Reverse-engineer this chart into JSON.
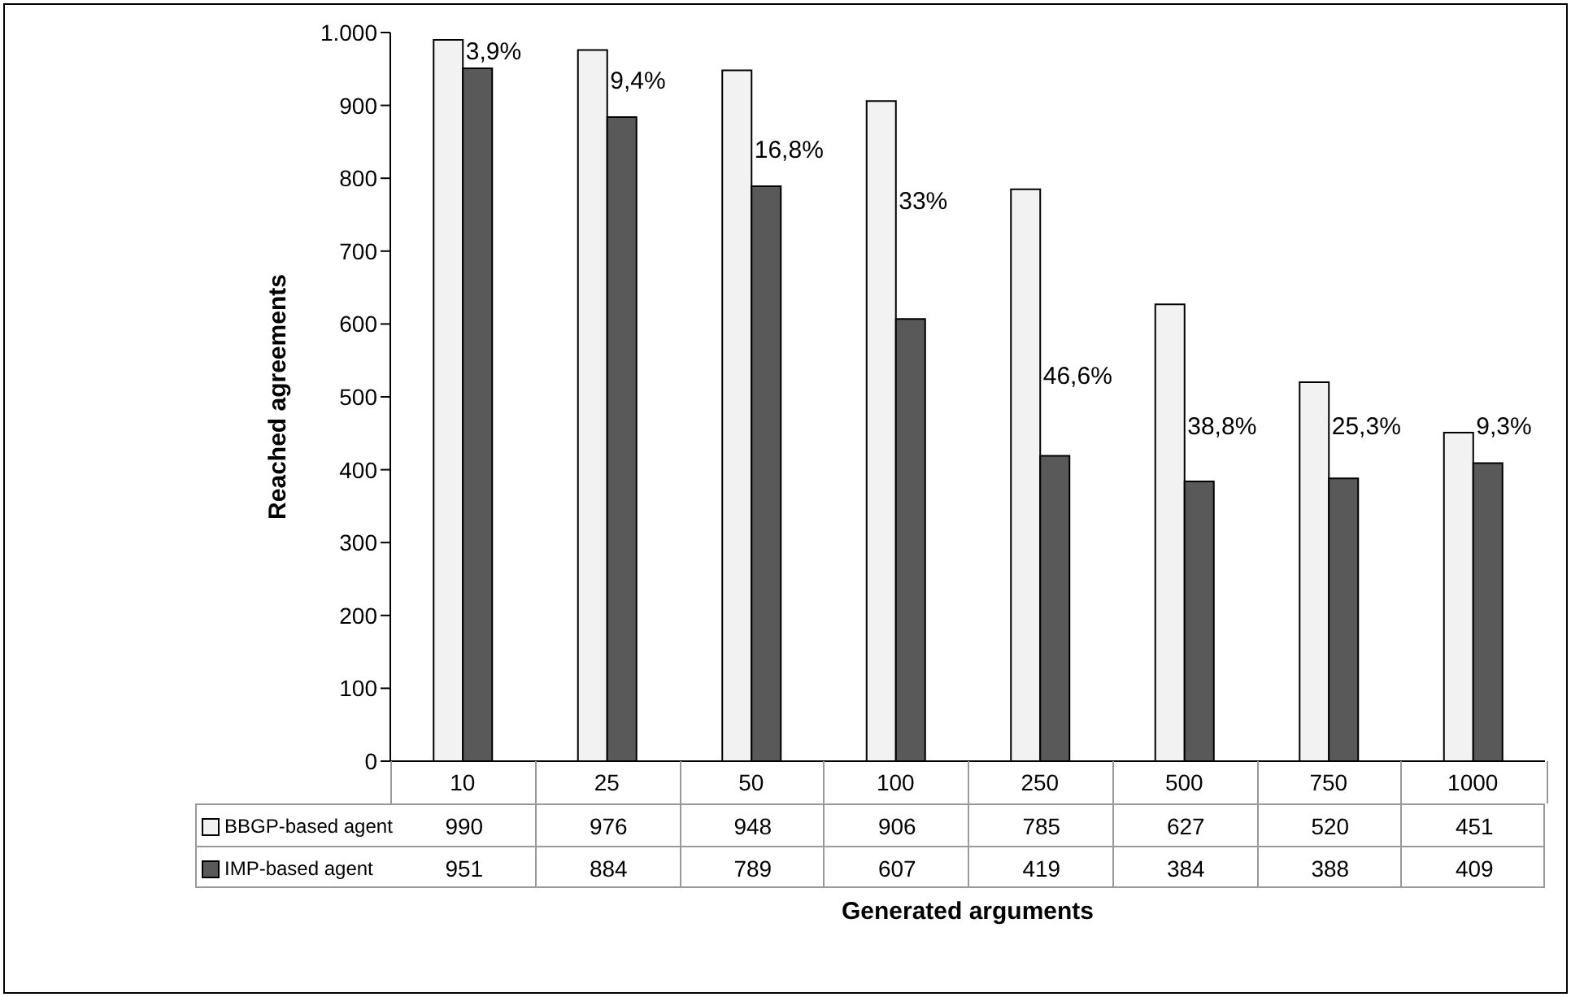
{
  "chart_data": {
    "type": "bar",
    "xlabel": "Generated arguments",
    "ylabel": "Reached agreements",
    "categories": [
      "10",
      "25",
      "50",
      "100",
      "250",
      "500",
      "750",
      "1000"
    ],
    "series": [
      {
        "name": "BBGP-based agent",
        "color": "#f2f2f2",
        "values": [
          990,
          976,
          948,
          906,
          785,
          627,
          520,
          451
        ]
      },
      {
        "name": "IMP-based agent",
        "color": "#595959",
        "values": [
          951,
          884,
          789,
          607,
          419,
          384,
          388,
          409
        ]
      }
    ],
    "ylim": [
      0,
      1000
    ],
    "yticks": [
      0,
      100,
      200,
      300,
      400,
      500,
      600,
      700,
      800,
      900,
      {
        "value": 1000,
        "label": "1.000"
      }
    ],
    "data_labels": true,
    "legend": "bottom",
    "annotations": [
      {
        "text": "3,9%",
        "x": "10",
        "y": 975
      },
      {
        "text": "9,4%",
        "x": "25",
        "y": 935
      },
      {
        "text": "16,8%",
        "x": "50",
        "y": 840
      },
      {
        "text": "33%",
        "x": "100",
        "y": 770
      },
      {
        "text": "46,6%",
        "x": "250",
        "y": 530
      },
      {
        "text": "38,8%",
        "x": "500",
        "y": 460
      },
      {
        "text": "25,3%",
        "x": "750",
        "y": 460
      },
      {
        "text": "9,3%",
        "x": "1000",
        "y": 460
      }
    ]
  }
}
